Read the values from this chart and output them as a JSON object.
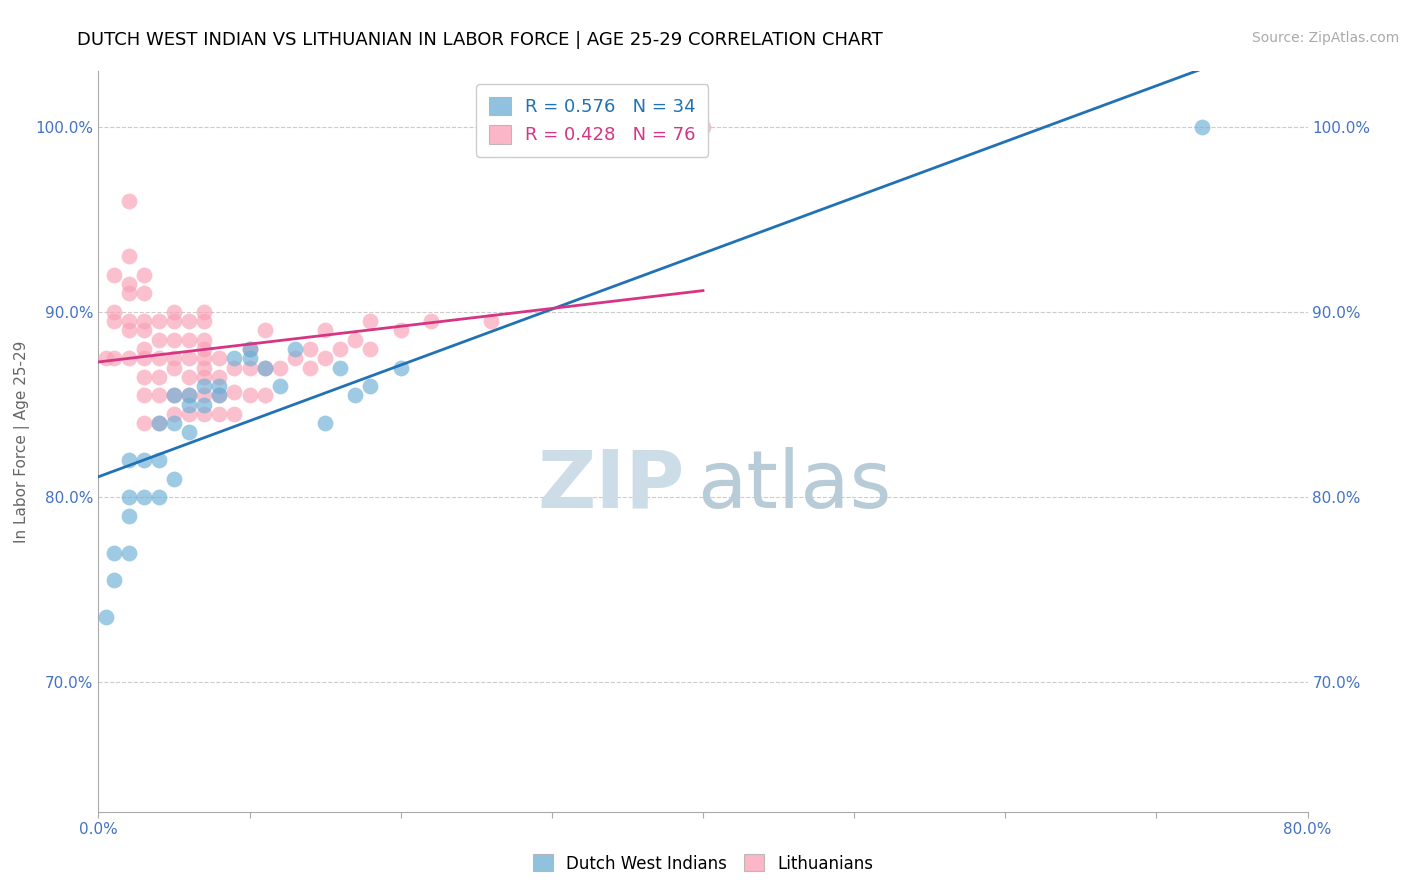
{
  "title": "DUTCH WEST INDIAN VS LITHUANIAN IN LABOR FORCE | AGE 25-29 CORRELATION CHART",
  "source": "Source: ZipAtlas.com",
  "xlabel": "",
  "ylabel": "In Labor Force | Age 25-29",
  "xlim": [
    0.0,
    0.8
  ],
  "ylim": [
    0.63,
    1.03
  ],
  "xtick_labels": [
    "0.0%",
    "",
    "",
    "",
    "",
    "",
    "",
    "",
    "80.0%"
  ],
  "xtick_vals": [
    0.0,
    0.1,
    0.2,
    0.3,
    0.4,
    0.5,
    0.6,
    0.7,
    0.8
  ],
  "ytick_labels": [
    "70.0%",
    "80.0%",
    "90.0%",
    "100.0%"
  ],
  "ytick_vals": [
    0.7,
    0.8,
    0.9,
    1.0
  ],
  "legend_blue_label": "Dutch West Indians",
  "legend_pink_label": "Lithuanians",
  "r_blue": 0.576,
  "n_blue": 34,
  "r_pink": 0.428,
  "n_pink": 76,
  "blue_color": "#6baed6",
  "pink_color": "#fa9fb5",
  "blue_line_color": "#2171b5",
  "pink_line_color": "#d63584",
  "watermark_color": "#dce8f0",
  "blue_x": [
    0.005,
    0.01,
    0.01,
    0.02,
    0.02,
    0.02,
    0.02,
    0.03,
    0.03,
    0.04,
    0.04,
    0.04,
    0.05,
    0.05,
    0.05,
    0.06,
    0.06,
    0.06,
    0.07,
    0.07,
    0.08,
    0.08,
    0.09,
    0.1,
    0.1,
    0.11,
    0.12,
    0.13,
    0.15,
    0.16,
    0.17,
    0.18,
    0.2,
    0.73
  ],
  "blue_y": [
    0.735,
    0.755,
    0.77,
    0.77,
    0.79,
    0.8,
    0.82,
    0.8,
    0.82,
    0.8,
    0.82,
    0.84,
    0.81,
    0.84,
    0.855,
    0.835,
    0.85,
    0.855,
    0.85,
    0.86,
    0.855,
    0.86,
    0.875,
    0.875,
    0.88,
    0.87,
    0.86,
    0.88,
    0.84,
    0.87,
    0.855,
    0.86,
    0.87,
    1.0
  ],
  "pink_x": [
    0.005,
    0.01,
    0.01,
    0.01,
    0.01,
    0.02,
    0.02,
    0.02,
    0.02,
    0.02,
    0.02,
    0.02,
    0.03,
    0.03,
    0.03,
    0.03,
    0.03,
    0.03,
    0.03,
    0.03,
    0.03,
    0.04,
    0.04,
    0.04,
    0.04,
    0.04,
    0.04,
    0.05,
    0.05,
    0.05,
    0.05,
    0.05,
    0.05,
    0.05,
    0.06,
    0.06,
    0.06,
    0.06,
    0.06,
    0.06,
    0.07,
    0.07,
    0.07,
    0.07,
    0.07,
    0.07,
    0.07,
    0.07,
    0.07,
    0.08,
    0.08,
    0.08,
    0.08,
    0.09,
    0.09,
    0.09,
    0.1,
    0.1,
    0.1,
    0.11,
    0.11,
    0.11,
    0.12,
    0.13,
    0.14,
    0.14,
    0.15,
    0.15,
    0.16,
    0.17,
    0.18,
    0.18,
    0.2,
    0.22,
    0.26,
    0.4
  ],
  "pink_y": [
    0.875,
    0.875,
    0.895,
    0.9,
    0.92,
    0.875,
    0.89,
    0.895,
    0.91,
    0.915,
    0.93,
    0.96,
    0.84,
    0.855,
    0.865,
    0.875,
    0.88,
    0.89,
    0.895,
    0.91,
    0.92,
    0.84,
    0.855,
    0.865,
    0.875,
    0.885,
    0.895,
    0.845,
    0.855,
    0.87,
    0.875,
    0.885,
    0.895,
    0.9,
    0.845,
    0.855,
    0.865,
    0.875,
    0.885,
    0.895,
    0.845,
    0.855,
    0.865,
    0.87,
    0.875,
    0.88,
    0.885,
    0.895,
    0.9,
    0.845,
    0.855,
    0.865,
    0.875,
    0.845,
    0.857,
    0.87,
    0.855,
    0.87,
    0.88,
    0.855,
    0.87,
    0.89,
    0.87,
    0.875,
    0.87,
    0.88,
    0.875,
    0.89,
    0.88,
    0.885,
    0.88,
    0.895,
    0.89,
    0.895,
    0.895,
    1.0
  ]
}
